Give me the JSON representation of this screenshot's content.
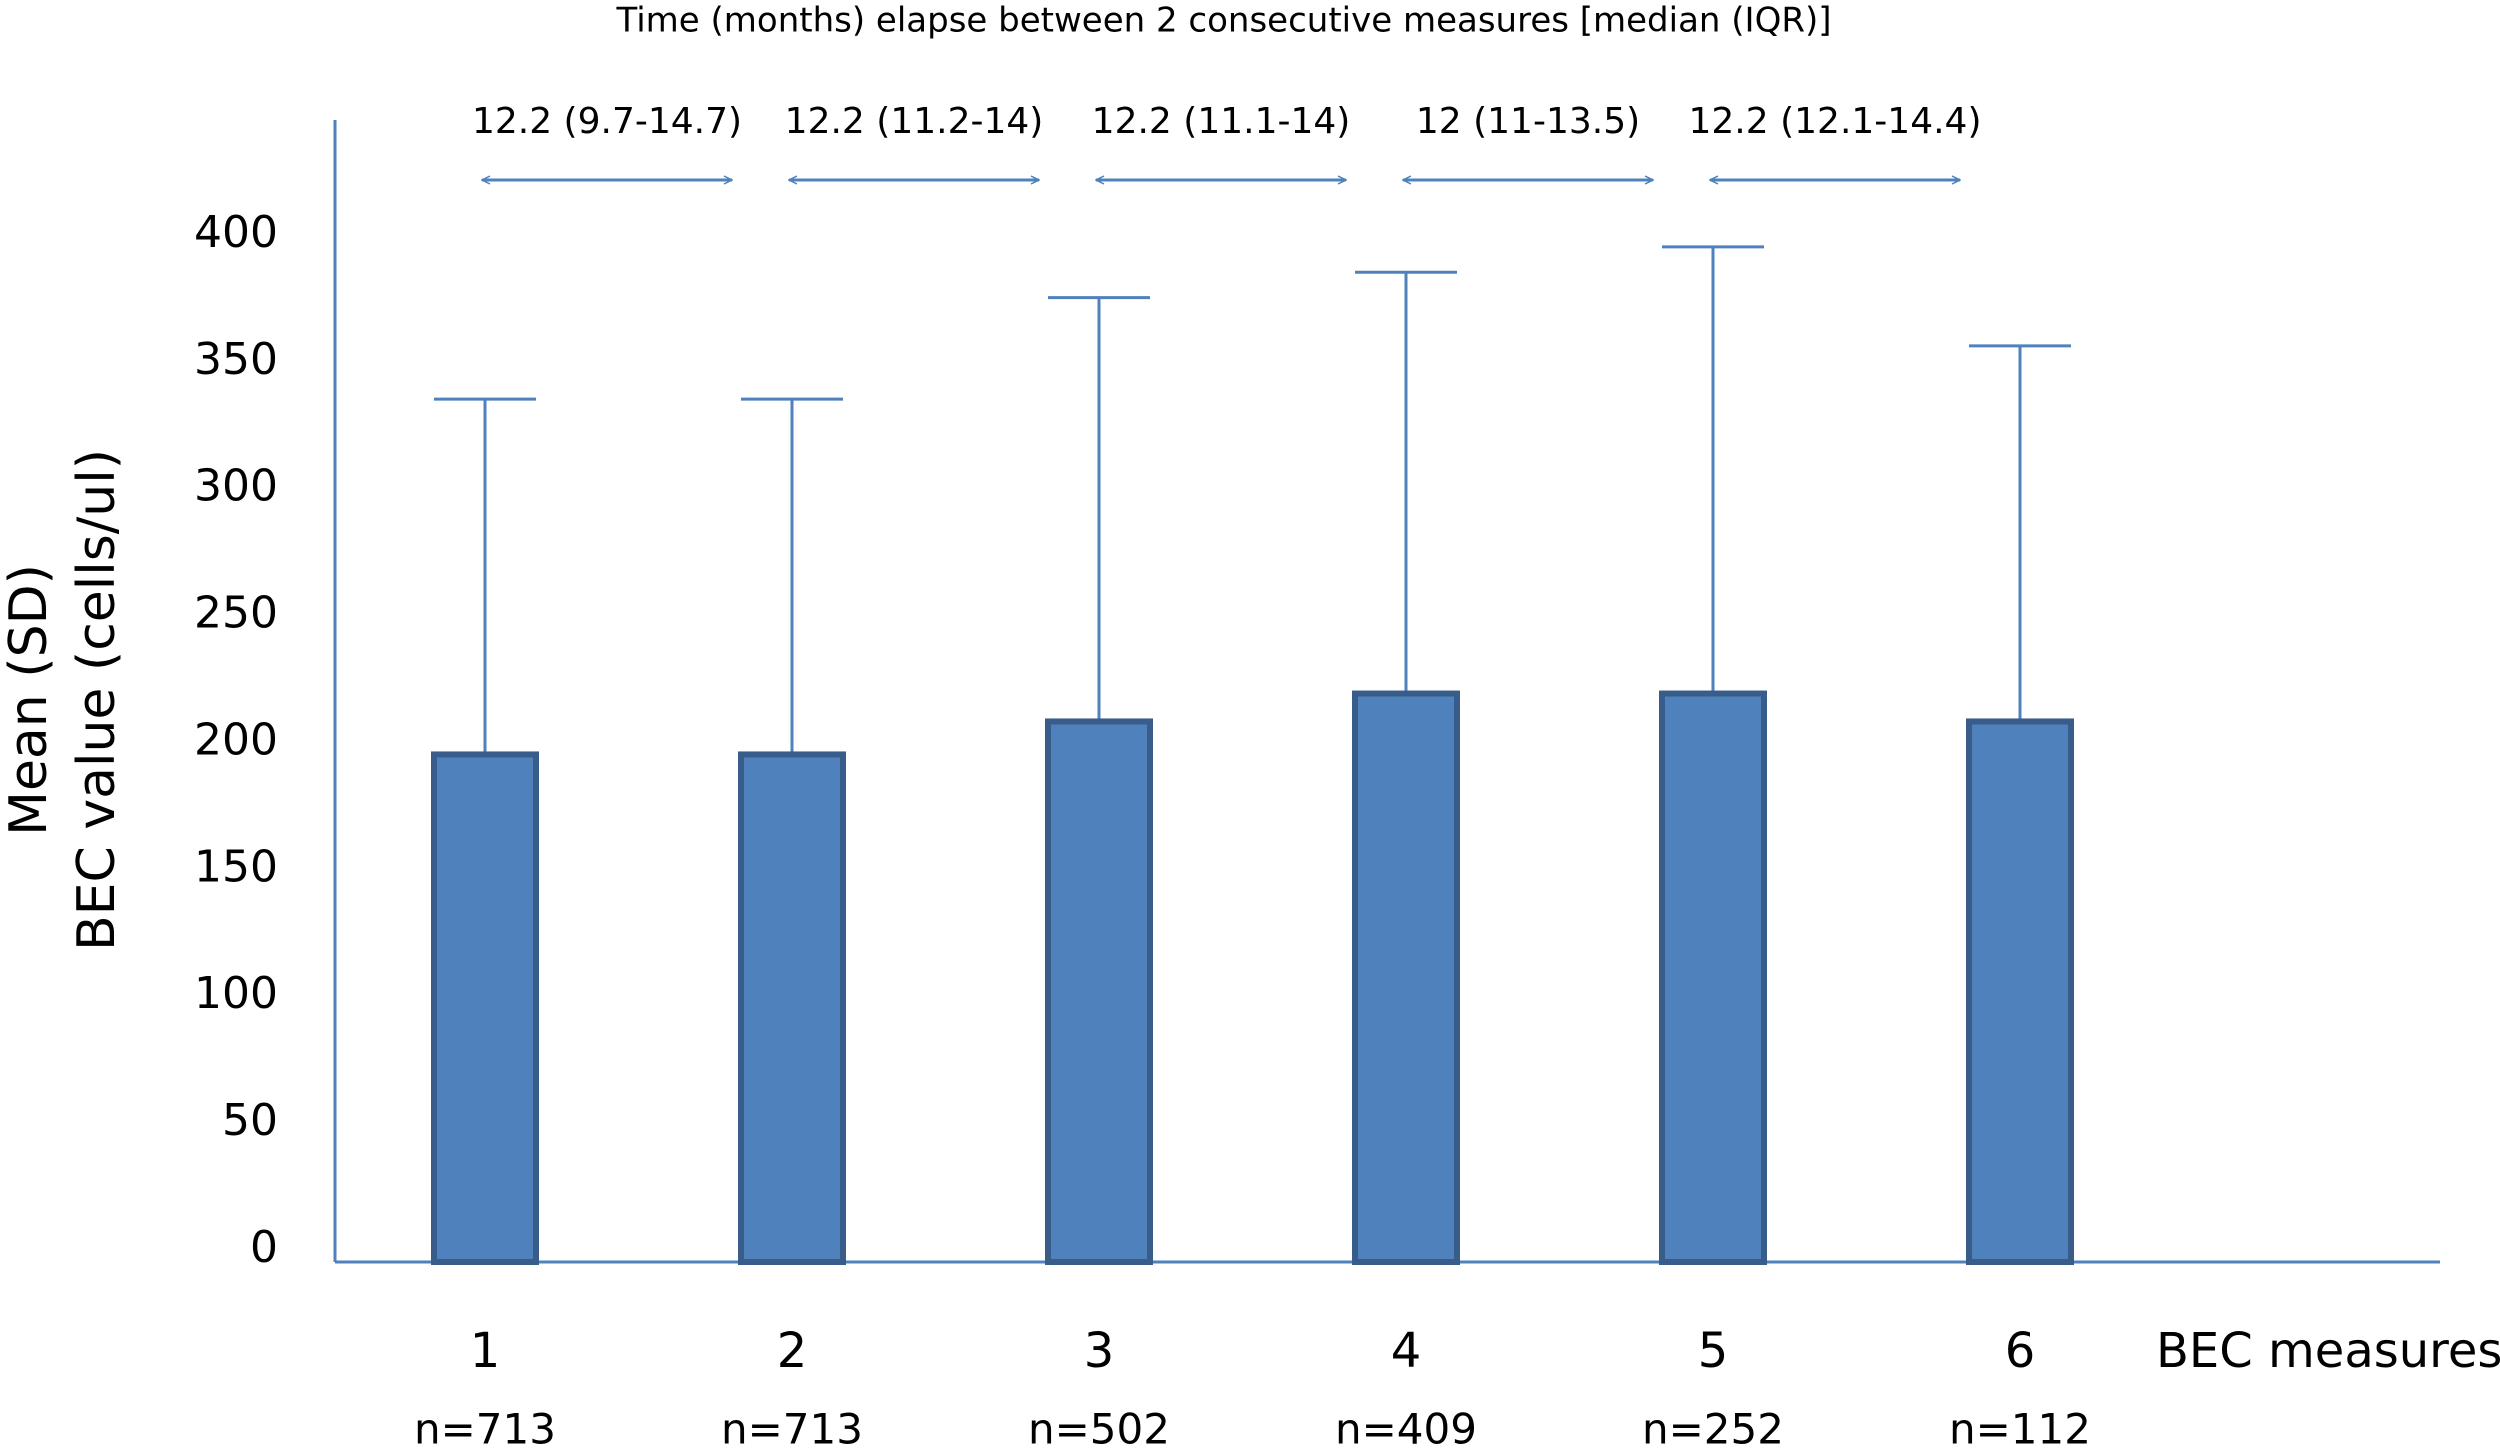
{
  "chart_data": {
    "type": "bar",
    "title": "Time (months) elapse between 2 consecutive measures [median (IQR)]",
    "y_label": [
      "Mean (SD)",
      "BEC value (cells/ul)"
    ],
    "x_label": "BEC measures",
    "categories": [
      "1",
      "2",
      "3",
      "4",
      "5",
      "6"
    ],
    "n_labels": [
      "n=713",
      "n=713",
      "n=502",
      "n=409",
      "n=252",
      "n=112"
    ],
    "values": [
      200,
      200,
      213,
      224,
      224,
      213
    ],
    "errors": [
      140,
      140,
      167,
      166,
      176,
      148
    ],
    "intervals": [
      "12.2 (9.7-14.7)",
      "12.2 (11.2-14)",
      "12.2 (11.1-14)",
      "12 (11-13.5)",
      "12.2 (12.1-14.4)"
    ],
    "color": "#4f81bd",
    "edge_color": "#385d8a",
    "ylim": [
      0,
      450
    ],
    "yticks": [
      0,
      50,
      100,
      150,
      200,
      250,
      300,
      350,
      400
    ],
    "grid": false
  }
}
